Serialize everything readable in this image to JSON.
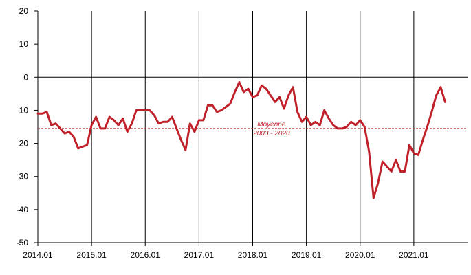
{
  "chart_data": {
    "type": "line",
    "title": "",
    "xlabel": "",
    "ylabel": "",
    "ylim": [
      -50,
      20
    ],
    "yticks": [
      20,
      10,
      0,
      -10,
      -20,
      -30,
      -40,
      -50
    ],
    "xticks": [
      "2014.01",
      "2015.01",
      "2016.01",
      "2017.01",
      "2018.01",
      "2019.01",
      "2020.01",
      "2021.01"
    ],
    "x_start": 2014.0,
    "x_end": 2022.0,
    "grid": "vertical lines at each year",
    "zero_line": true,
    "series": [
      {
        "color": "#c0202a",
        "points": [
          [
            2014.0,
            -11.0
          ],
          [
            2014.083,
            -11.0
          ],
          [
            2014.167,
            -10.5
          ],
          [
            2014.25,
            -14.5
          ],
          [
            2014.333,
            -14.0
          ],
          [
            2014.417,
            -15.5
          ],
          [
            2014.5,
            -17.0
          ],
          [
            2014.583,
            -16.5
          ],
          [
            2014.667,
            -18.0
          ],
          [
            2014.75,
            -21.5
          ],
          [
            2014.833,
            -21.0
          ],
          [
            2014.917,
            -20.5
          ],
          [
            2015.0,
            -14.5
          ],
          [
            2015.083,
            -12.0
          ],
          [
            2015.167,
            -15.5
          ],
          [
            2015.25,
            -15.5
          ],
          [
            2015.333,
            -12.0
          ],
          [
            2015.417,
            -13.0
          ],
          [
            2015.5,
            -14.5
          ],
          [
            2015.583,
            -12.5
          ],
          [
            2015.667,
            -16.5
          ],
          [
            2015.75,
            -14.0
          ],
          [
            2015.833,
            -10.0
          ],
          [
            2015.917,
            -10.0
          ],
          [
            2016.0,
            -10.0
          ],
          [
            2016.083,
            -10.0
          ],
          [
            2016.167,
            -11.5
          ],
          [
            2016.25,
            -14.0
          ],
          [
            2016.333,
            -13.5
          ],
          [
            2016.417,
            -13.5
          ],
          [
            2016.5,
            -12.0
          ],
          [
            2016.583,
            -15.5
          ],
          [
            2016.667,
            -19.0
          ],
          [
            2016.75,
            -22.0
          ],
          [
            2016.833,
            -14.0
          ],
          [
            2016.917,
            -16.5
          ],
          [
            2017.0,
            -13.0
          ],
          [
            2017.083,
            -13.0
          ],
          [
            2017.167,
            -8.5
          ],
          [
            2017.25,
            -8.5
          ],
          [
            2017.333,
            -10.5
          ],
          [
            2017.417,
            -10.0
          ],
          [
            2017.5,
            -9.0
          ],
          [
            2017.583,
            -8.0
          ],
          [
            2017.667,
            -4.5
          ],
          [
            2017.75,
            -1.5
          ],
          [
            2017.833,
            -4.5
          ],
          [
            2017.917,
            -3.5
          ],
          [
            2018.0,
            -6.0
          ],
          [
            2018.083,
            -5.5
          ],
          [
            2018.167,
            -2.5
          ],
          [
            2018.25,
            -3.5
          ],
          [
            2018.333,
            -5.5
          ],
          [
            2018.417,
            -7.5
          ],
          [
            2018.5,
            -6.0
          ],
          [
            2018.583,
            -9.5
          ],
          [
            2018.667,
            -5.5
          ],
          [
            2018.75,
            -3.0
          ],
          [
            2018.833,
            -10.5
          ],
          [
            2018.917,
            -13.5
          ],
          [
            2019.0,
            -12.0
          ],
          [
            2019.083,
            -14.5
          ],
          [
            2019.167,
            -13.5
          ],
          [
            2019.25,
            -14.5
          ],
          [
            2019.333,
            -10.0
          ],
          [
            2019.417,
            -12.5
          ],
          [
            2019.5,
            -14.5
          ],
          [
            2019.583,
            -15.5
          ],
          [
            2019.667,
            -15.5
          ],
          [
            2019.75,
            -15.0
          ],
          [
            2019.833,
            -13.5
          ],
          [
            2019.917,
            -14.5
          ],
          [
            2020.0,
            -13.0
          ],
          [
            2020.083,
            -15.0
          ],
          [
            2020.167,
            -22.5
          ],
          [
            2020.25,
            -36.5
          ],
          [
            2020.333,
            -32.0
          ],
          [
            2020.417,
            -25.5
          ],
          [
            2020.5,
            -27.0
          ],
          [
            2020.583,
            -28.5
          ],
          [
            2020.667,
            -25.0
          ],
          [
            2020.75,
            -28.5
          ],
          [
            2020.833,
            -28.5
          ],
          [
            2020.917,
            -20.5
          ],
          [
            2021.0,
            -23.0
          ],
          [
            2021.083,
            -23.5
          ],
          [
            2021.167,
            -19.0
          ],
          [
            2021.25,
            -15.0
          ],
          [
            2021.333,
            -10.5
          ],
          [
            2021.417,
            -5.5
          ],
          [
            2021.5,
            -3.0
          ],
          [
            2021.583,
            -7.5
          ]
        ]
      }
    ],
    "average": {
      "value": -15.5,
      "color": "#c0202a",
      "label_line1": "Moyenne",
      "label_line2": "2003 - 2020"
    }
  }
}
